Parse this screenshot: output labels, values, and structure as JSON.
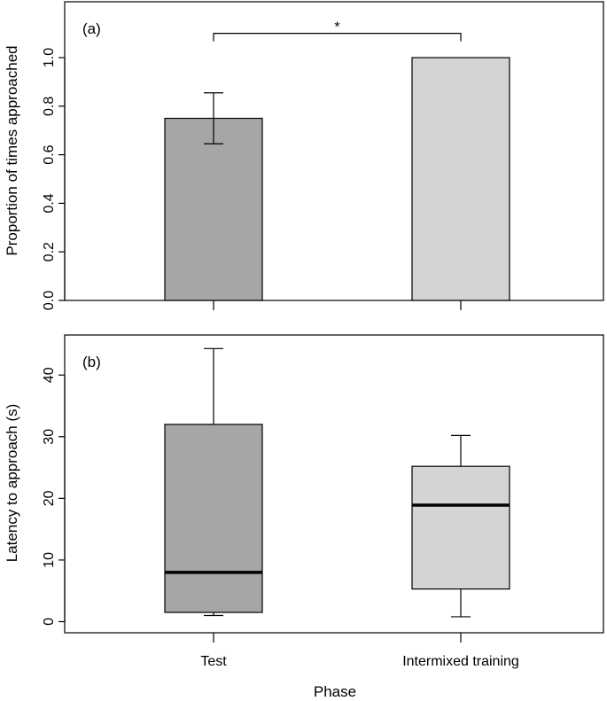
{
  "chart_data": [
    {
      "type": "bar",
      "panel_label": "(a)",
      "categories": [
        "Test",
        "Intermixed training"
      ],
      "values": [
        0.75,
        1.0
      ],
      "error": [
        0.105,
        0.0
      ],
      "colors": [
        "#a6a6a6",
        "#d4d4d4"
      ],
      "ylabel": "Proportion of times approached",
      "ylim": [
        0,
        1.23
      ],
      "yticks": [
        0.0,
        0.2,
        0.4,
        0.6,
        0.8,
        1.0
      ],
      "ytick_labels": [
        "0.0",
        "0.2",
        "0.4",
        "0.6",
        "0.8",
        "1.0"
      ],
      "significance": {
        "label": "*",
        "between": [
          "Test",
          "Intermixed training"
        ],
        "y": 1.1
      }
    },
    {
      "type": "box",
      "panel_label": "(b)",
      "categories": [
        "Test",
        "Intermixed training"
      ],
      "boxes": [
        {
          "whisker_low": 1.0,
          "q1": 1.5,
          "median": 8.0,
          "q3": 32.0,
          "whisker_high": 44.3
        },
        {
          "whisker_low": 0.8,
          "q1": 5.3,
          "median": 18.9,
          "q3": 25.2,
          "whisker_high": 30.2
        }
      ],
      "colors": [
        "#a6a6a6",
        "#d4d4d4"
      ],
      "ylabel": "Latency to approach (s)",
      "xlabel": "Phase",
      "ylim": [
        -1.8,
        46.5
      ],
      "yticks": [
        0,
        10,
        20,
        30,
        40
      ],
      "ytick_labels": [
        "0",
        "10",
        "20",
        "30",
        "40"
      ]
    }
  ]
}
